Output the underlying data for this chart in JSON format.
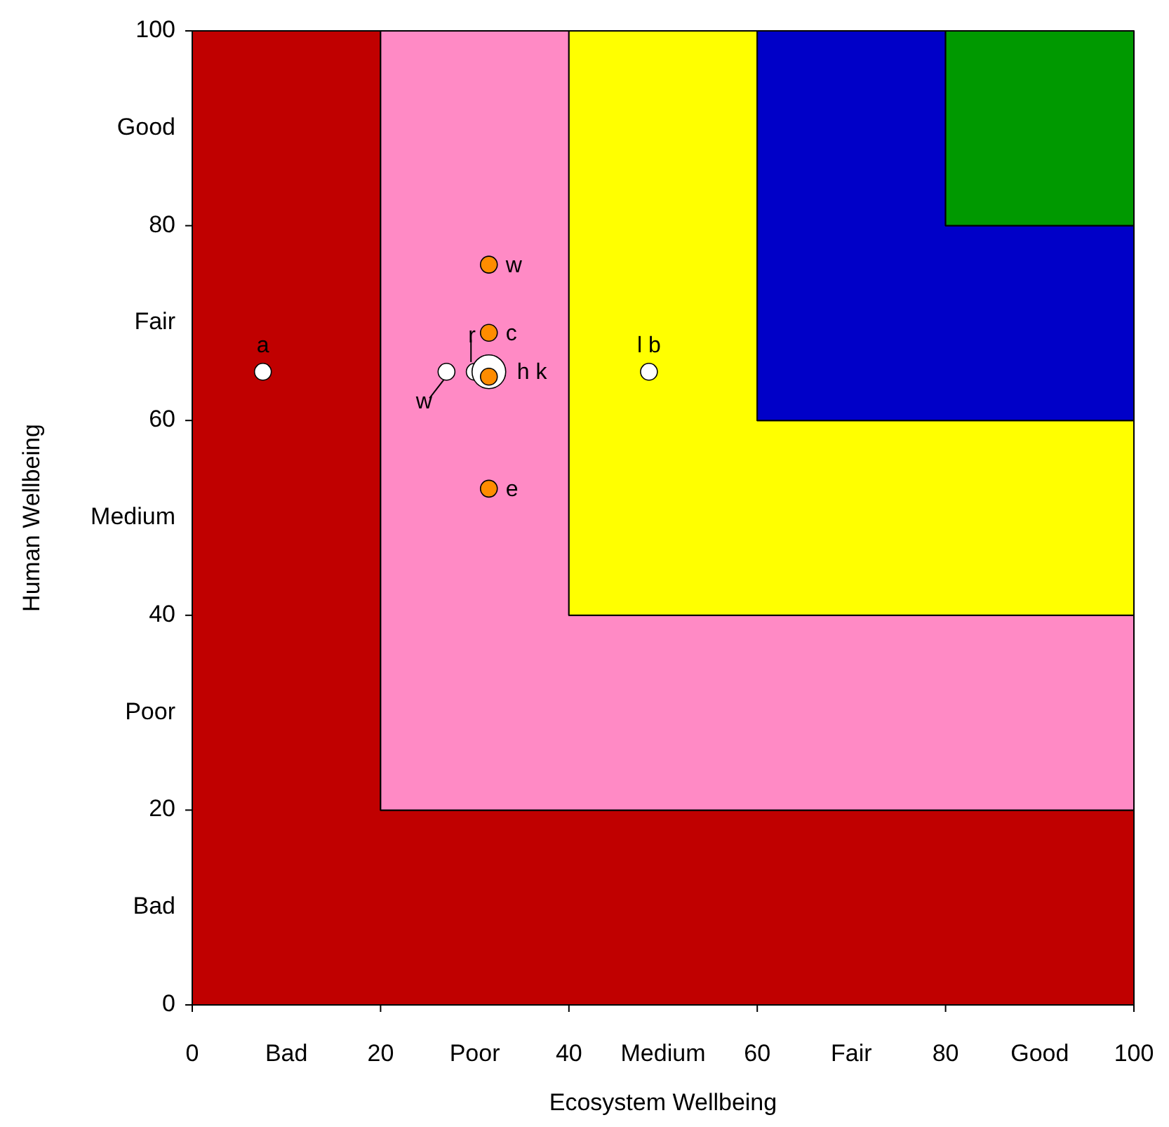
{
  "chart_data": {
    "type": "scatter",
    "xlabel": "Ecosystem Wellbeing",
    "ylabel": "Human Wellbeing",
    "xlim": [
      0,
      100
    ],
    "ylim": [
      0,
      100
    ],
    "xticks": [
      0,
      20,
      40,
      60,
      80,
      100,
      {
        "value": 10,
        "label": "Bad"
      },
      {
        "value": 30,
        "label": "Poor"
      },
      {
        "value": 50,
        "label": "Medium"
      },
      {
        "value": 70,
        "label": "Fair"
      },
      {
        "value": 90,
        "label": "Good"
      }
    ],
    "yticks": [
      0,
      20,
      40,
      60,
      80,
      100,
      {
        "value": 10,
        "label": "Bad"
      },
      {
        "value": 30,
        "label": "Poor"
      },
      {
        "value": 50,
        "label": "Medium"
      },
      {
        "value": 70,
        "label": "Fair"
      },
      {
        "value": 90,
        "label": "Good"
      }
    ],
    "grid": false,
    "marker": "circle",
    "stacked": true,
    "series": [
      {
        "type": "area",
        "marker": "none",
        "color": "#c00000",
        "x": [
          0,
          20,
          20,
          40,
          40,
          60,
          60,
          80,
          80,
          100
        ],
        "values": [
          100,
          100,
          20,
          20,
          20,
          20,
          20,
          20,
          20,
          20
        ]
      },
      {
        "type": "area",
        "marker": "none",
        "color": "#ff8ac5",
        "x": [
          0,
          20,
          20,
          40,
          40,
          60,
          60,
          80,
          80,
          100
        ],
        "values": [
          0,
          0,
          80,
          80,
          20,
          20,
          20,
          20,
          20,
          20
        ]
      },
      {
        "type": "area",
        "marker": "none",
        "color": "#ffff00",
        "x": [
          0,
          20,
          20,
          40,
          40,
          60,
          60,
          80,
          80,
          100
        ],
        "values": [
          0,
          0,
          0,
          0,
          60,
          60,
          20,
          20,
          20,
          20
        ]
      },
      {
        "type": "area",
        "marker": "none",
        "color": "#0000c8",
        "x": [
          0,
          20,
          20,
          40,
          40,
          60,
          60,
          80,
          80,
          100
        ],
        "values": [
          0,
          0,
          0,
          0,
          0,
          0,
          40,
          40,
          20,
          20
        ]
      },
      {
        "type": "area",
        "marker": "none",
        "color": "#009900",
        "x": [
          0,
          20,
          20,
          40,
          40,
          60,
          60,
          80,
          80,
          100
        ],
        "values": [
          0,
          0,
          0,
          0,
          0,
          0,
          0,
          0,
          20,
          20
        ]
      },
      {
        "type": "bubble",
        "color": "#ffffff",
        "x": [
          7.5,
          27,
          30,
          31.5,
          48.5
        ],
        "values": [
          65,
          65,
          65,
          65,
          65
        ],
        "sizes": [
          0.25,
          0.25,
          0.25,
          1,
          0.25
        ]
      },
      {
        "color": "#ff8c00",
        "x": [
          31.5,
          31.5,
          31.5,
          31.5
        ],
        "values": [
          76,
          69,
          64.5,
          53
        ]
      }
    ],
    "annotations": [
      {
        "text": "a",
        "x": 7.5,
        "y": 65
      },
      {
        "text": "w",
        "x": 27,
        "y": 65
      },
      {
        "text": "r",
        "x": 30,
        "y": 65
      },
      {
        "text": "h k",
        "x": 31.5,
        "y": 65
      },
      {
        "text": "l b",
        "x": 48.5,
        "y": 65
      },
      {
        "text": "w",
        "x": 31.5,
        "y": 76
      },
      {
        "text": "c",
        "x": 31.5,
        "y": 69
      },
      {
        "text": "e",
        "x": 31.5,
        "y": 53
      }
    ]
  }
}
